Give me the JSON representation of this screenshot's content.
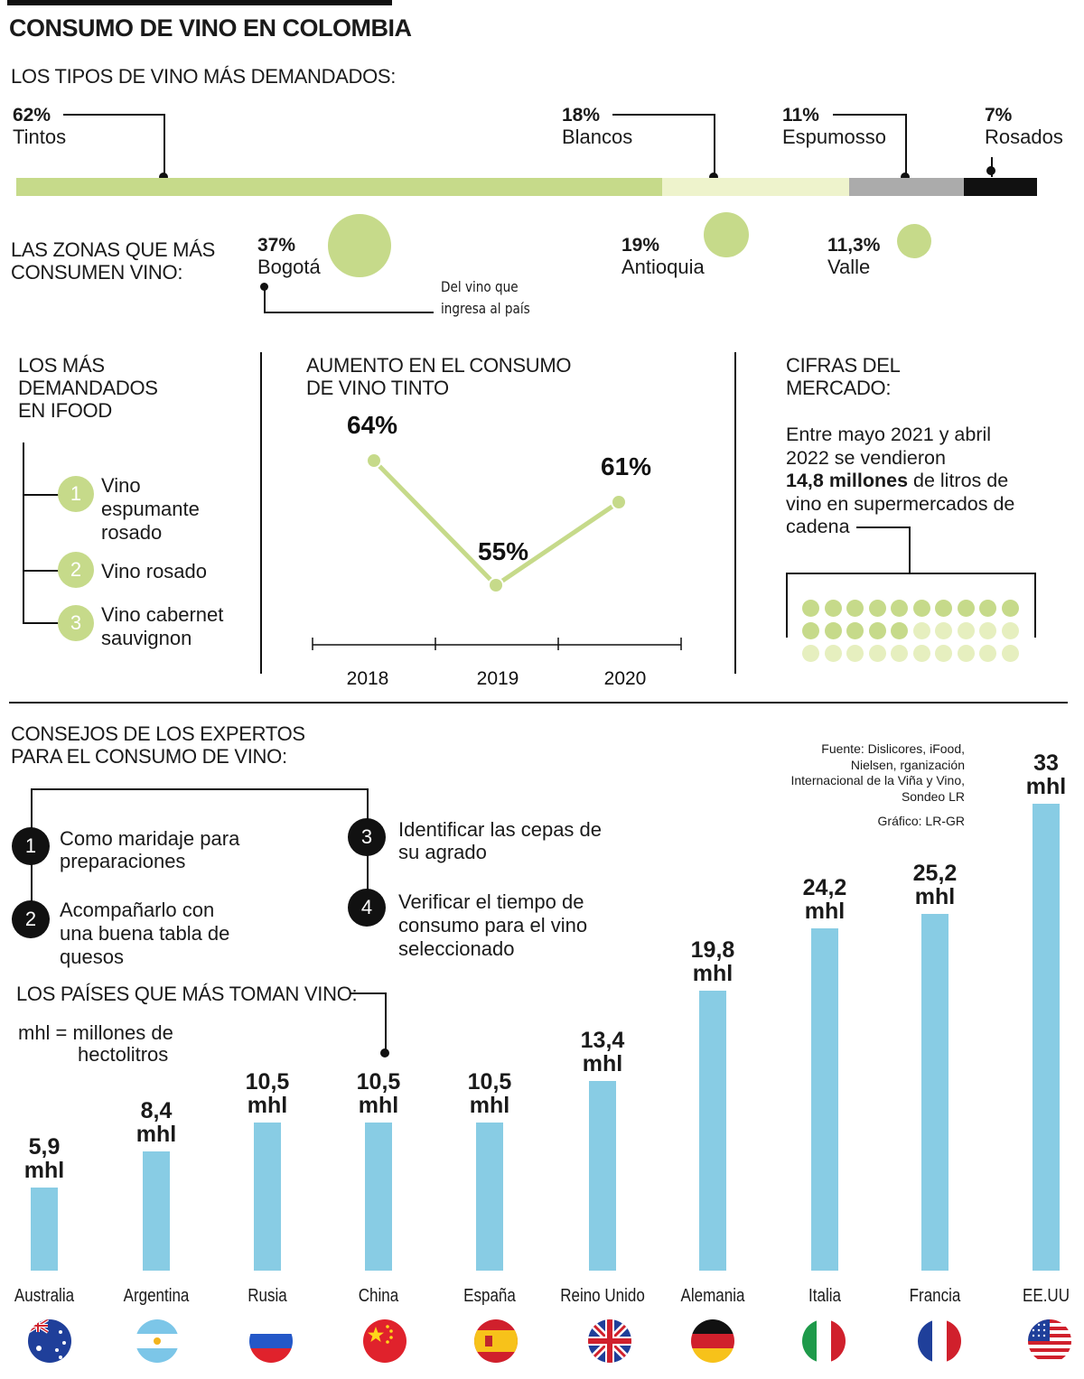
{
  "title": "CONSUMO DE VINO EN COLOMBIA",
  "wine_types": {
    "heading": "LOS TIPOS DE VINO MÁS DEMANDADOS:",
    "items": [
      {
        "pct": "62%",
        "label": "Tintos",
        "value": 62,
        "color": "#c6da8a"
      },
      {
        "pct": "18%",
        "label": "Blancos",
        "value": 18,
        "color": "#eef3cc"
      },
      {
        "pct": "11%",
        "label": "Espumosso",
        "value": 11,
        "color": "#ababab"
      },
      {
        "pct": "7%",
        "label": "Rosados",
        "value": 7,
        "color": "#111111"
      }
    ]
  },
  "zones": {
    "heading_1": "LAS ZONAS QUE MÁS",
    "heading_2": "CONSUMEN VINO:",
    "items": [
      {
        "pct": "37%",
        "label": "Bogotá",
        "value": 37
      },
      {
        "pct": "19%",
        "label": "Antioquia",
        "value": 19
      },
      {
        "pct": "11,3%",
        "label": "Valle",
        "value": 11.3
      }
    ],
    "note_1": "Del vino que",
    "note_2": "ingresa al país"
  },
  "ifood": {
    "heading_1": "LOS MÁS",
    "heading_2": "DEMANDADOS",
    "heading_3": "EN IFOOD",
    "items": [
      {
        "num": "1",
        "line_1": "Vino",
        "line_2": "espumante",
        "line_3": "rosado"
      },
      {
        "num": "2",
        "line_1": "Vino rosado"
      },
      {
        "num": "3",
        "line_1": "Vino cabernet",
        "line_2": "sauvignon"
      }
    ]
  },
  "red_wine": {
    "heading_1": "AUMENTO EN EL CONSUMO",
    "heading_2": "DE VINO TINTO"
  },
  "market": {
    "heading_1": "CIFRAS DEL",
    "heading_2": "MERCADO:",
    "text_1": "Entre mayo 2021 y abril",
    "text_2": "2022 se vendieron",
    "text_3_bold": "14,8 millones",
    "text_3_rest": " de litros de",
    "text_4": "vino en supermercados de",
    "text_5": "cadena",
    "dots_total": 30,
    "dots_dark": 10,
    "dots_mid": 5,
    "color_dark": "#c6da8a",
    "color_light": "#e6efbf"
  },
  "tips": {
    "heading_1": "CONSEJOS DE LOS EXPERTOS",
    "heading_2": "PARA EL CONSUMO DE VINO:",
    "items": [
      {
        "num": "1",
        "line_1": "Como maridaje para",
        "line_2": "preparaciones"
      },
      {
        "num": "2",
        "line_1": "Acompañarlo con",
        "line_2": "una buena tabla de",
        "line_3": "quesos"
      },
      {
        "num": "3",
        "line_1": "Identificar las cepas de",
        "line_2": "su agrado"
      },
      {
        "num": "4",
        "line_1": "Verificar el tiempo de",
        "line_2": "consumo para el vino",
        "line_3": "seleccionado"
      }
    ]
  },
  "source": {
    "line_1": "Fuente: Dislicores, iFood,",
    "line_2": "Nielsen, rganización",
    "line_3": "Internacional de la Viña y Vino,",
    "line_4": "Sondeo LR",
    "credit": "Gráfico: LR-GR"
  },
  "countries_section": {
    "heading": "LOS PAÍSES QUE MÁS TOMAN VINO:",
    "unit_1": "mhl = millones de",
    "unit_2": "hectolitros"
  },
  "chart_data": [
    {
      "type": "line",
      "title": "AUMENTO EN EL CONSUMO DE VINO TINTO",
      "x": [
        "2018",
        "2019",
        "2020"
      ],
      "values": [
        64,
        55,
        61
      ],
      "labels": [
        "64%",
        "55%",
        "61%"
      ],
      "color": "#c6da8a"
    },
    {
      "type": "bar",
      "title": "LOS PAÍSES QUE MÁS TOMAN VINO:",
      "categories": [
        "Australia",
        "Argentina",
        "Rusia",
        "China",
        "España",
        "Reino Unido",
        "Alemania",
        "Italia",
        "Francia",
        "EE.UU"
      ],
      "values": [
        5.9,
        8.4,
        10.5,
        10.5,
        10.5,
        13.4,
        19.8,
        24.2,
        25.2,
        33
      ],
      "value_labels": [
        "5,9",
        "8,4",
        "10,5",
        "10,5",
        "10,5",
        "13,4",
        "19,8",
        "24,2",
        "25,2",
        "33"
      ],
      "unit": "mhl",
      "color": "#88cce4"
    }
  ]
}
